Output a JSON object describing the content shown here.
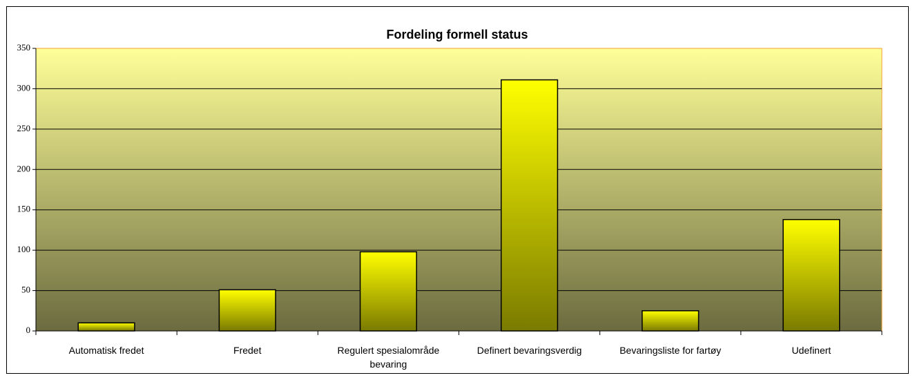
{
  "chart_data": {
    "type": "bar",
    "title": "Fordeling  formell status",
    "categories": [
      "Automatisk fredet",
      "Fredet",
      "Regulert spesialområde bevaring",
      "Definert bevaringsverdig",
      "Bevaringsliste for fartøy",
      "Udefinert"
    ],
    "values": [
      10,
      51,
      98,
      311,
      25,
      138
    ],
    "color": "#ffff00",
    "ylim": [
      0,
      350
    ],
    "yticks": [
      0,
      50,
      100,
      150,
      200,
      250,
      300,
      350
    ],
    "grid": true
  }
}
